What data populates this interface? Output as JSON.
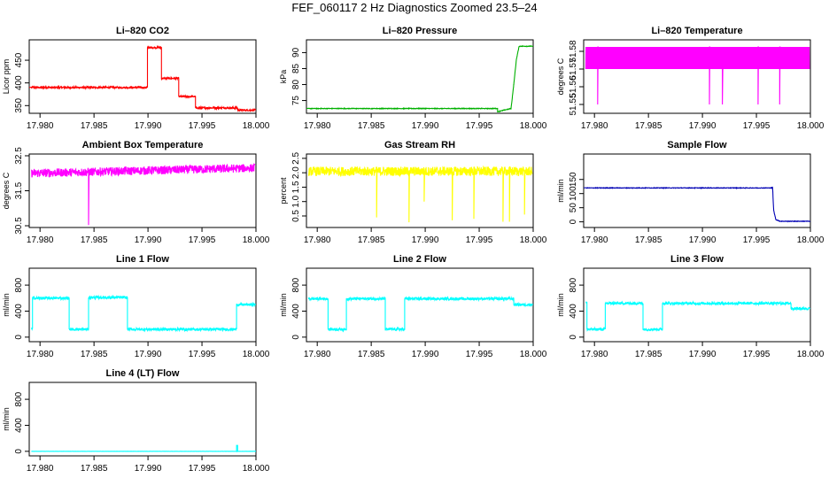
{
  "title": "FEF_060117  2 Hz Diagnostics Zoomed 23.5–24",
  "colors": {
    "red": "#ff0000",
    "green": "#00b000",
    "magenta": "#ff00ff",
    "yellow": "#ffff00",
    "blue": "#0000b4",
    "cyan": "#00ffff",
    "axis": "#000000"
  },
  "chart_data": [
    {
      "type": "line",
      "title": "Li–820 CO2",
      "xlabel": "",
      "ylabel": "Licor ppm",
      "color": "#ff0000",
      "xlim": [
        17.979,
        18.0
      ],
      "ylim": [
        333,
        495
      ],
      "xticks": [
        "17.980",
        "17.985",
        "17.990",
        "17.995",
        "18.000"
      ],
      "yticks": [
        "350",
        "400",
        "450"
      ],
      "series": [
        {
          "x": [
            17.979,
            17.98995,
            17.98995,
            17.99125,
            17.99125,
            17.99285,
            17.99285,
            17.9944,
            17.9944,
            17.9983,
            17.9983,
            18.0
          ],
          "values": [
            390,
            390,
            478,
            478,
            410,
            410,
            370,
            370,
            345,
            345,
            340,
            340
          ],
          "noise": 2
        }
      ]
    },
    {
      "type": "line",
      "title": "Li–820 Pressure",
      "xlabel": "",
      "ylabel": "kPa",
      "color": "#00b000",
      "xlim": [
        17.979,
        18.0
      ],
      "ylim": [
        71,
        94
      ],
      "xticks": [
        "17.980",
        "17.985",
        "17.990",
        "17.995",
        "18.000"
      ],
      "yticks": [
        "75",
        "80",
        "85",
        "90"
      ],
      "series": [
        {
          "x": [
            17.979,
            17.9967,
            17.9967,
            17.99795,
            17.9982,
            17.99845,
            17.9987,
            18.0
          ],
          "values": [
            72.5,
            72.5,
            71.5,
            72.5,
            80,
            88,
            92,
            92
          ],
          "noise": 0.1
        }
      ]
    },
    {
      "type": "line",
      "title": "Li–820 Temperature",
      "xlabel": "",
      "ylabel": "degrees C",
      "color": "#ff00ff",
      "xlim": [
        17.979,
        18.0
      ],
      "ylim": [
        51.545,
        51.5865
      ],
      "xticks": [
        "17.980",
        "17.985",
        "17.990",
        "17.995",
        "18.000"
      ],
      "yticks": [
        "51.55",
        "51.56",
        "51.57",
        "51.58"
      ],
      "series": [
        {
          "low": 51.57,
          "high": 51.5825,
          "spike_value": 51.55,
          "spikes_x": [
            17.9803,
            17.99065,
            17.99185,
            17.99515,
            17.99715
          ]
        }
      ]
    },
    {
      "type": "line",
      "title": "Ambient Box Temperature",
      "xlabel": "",
      "ylabel": "degrees C",
      "color": "#ff00ff",
      "xlim": [
        17.979,
        18.0
      ],
      "ylim": [
        30.45,
        32.55
      ],
      "xticks": [
        "17.980",
        "17.985",
        "17.990",
        "17.995",
        "18.000"
      ],
      "yticks": [
        "30.5",
        "31.5",
        "32.5"
      ],
      "series": [
        {
          "base": 32.0,
          "base_end": 32.15,
          "noise": 0.12,
          "spikes_x": [
            17.9845
          ],
          "spike_value": 30.52
        }
      ]
    },
    {
      "type": "line",
      "title": "Gas Stream RH",
      "xlabel": "",
      "ylabel": "percent",
      "color": "#ffff00",
      "xlim": [
        17.979,
        18.0
      ],
      "ylim": [
        0.1,
        2.65
      ],
      "xticks": [
        "17.980",
        "17.985",
        "17.990",
        "17.995",
        "18.000"
      ],
      "yticks": [
        "0.5",
        "1.0",
        "1.5",
        "2.0",
        "2.5"
      ],
      "series": [
        {
          "base": 2.05,
          "noise": 0.16,
          "spikes_x": [
            17.9855,
            17.9885,
            17.9899,
            17.9925,
            17.9945,
            17.9972,
            17.9978,
            17.9992
          ],
          "spike_values": [
            0.45,
            0.28,
            1.0,
            0.35,
            0.4,
            0.3,
            0.3,
            0.55
          ]
        }
      ]
    },
    {
      "type": "line",
      "title": "Sample Flow",
      "xlabel": "",
      "ylabel": "ml/min",
      "color": "#0000b4",
      "xlim": [
        17.979,
        18.0
      ],
      "ylim": [
        -20,
        240
      ],
      "xticks": [
        "17.980",
        "17.985",
        "17.990",
        "17.995",
        "18.000"
      ],
      "yticks": [
        "0",
        "50",
        "100",
        "150"
      ],
      "series": [
        {
          "x": [
            17.979,
            17.9965,
            17.9966,
            17.9968,
            17.9972,
            18.0
          ],
          "values": [
            120,
            120,
            40,
            8,
            2,
            2
          ],
          "noise": 1
        }
      ]
    },
    {
      "type": "line",
      "title": "Line 1 Flow",
      "xlabel": "",
      "ylabel": "ml/min",
      "color": "#00ffff",
      "xlim": [
        17.979,
        18.0
      ],
      "ylim": [
        -70,
        1060
      ],
      "xticks": [
        "17.980",
        "17.985",
        "17.990",
        "17.995",
        "18.000"
      ],
      "yticks": [
        "0",
        "400",
        "800"
      ],
      "series": [
        {
          "x": [
            17.9793,
            17.9793,
            17.9827,
            17.9827,
            17.9845,
            17.9845,
            17.9881,
            17.9881,
            17.9982,
            17.9982,
            18.0
          ],
          "values": [
            130,
            600,
            600,
            120,
            120,
            610,
            610,
            120,
            120,
            500,
            500
          ],
          "noise": 20
        }
      ]
    },
    {
      "type": "line",
      "title": "Line 2 Flow",
      "xlabel": "",
      "ylabel": "ml/min",
      "color": "#00ffff",
      "xlim": [
        17.979,
        18.0
      ],
      "ylim": [
        -70,
        1060
      ],
      "xticks": [
        "17.980",
        "17.985",
        "17.990",
        "17.995",
        "18.000"
      ],
      "yticks": [
        "0",
        "400",
        "800"
      ],
      "series": [
        {
          "x": [
            17.9793,
            17.981,
            17.981,
            17.9827,
            17.9827,
            17.9863,
            17.9863,
            17.9881,
            17.9881,
            17.9982,
            17.9982,
            18.0
          ],
          "values": [
            590,
            590,
            120,
            120,
            590,
            590,
            120,
            120,
            590,
            590,
            500,
            500
          ],
          "noise": 20
        }
      ]
    },
    {
      "type": "line",
      "title": "Line 3 Flow",
      "xlabel": "",
      "ylabel": "ml/min",
      "color": "#00ffff",
      "xlim": [
        17.979,
        18.0
      ],
      "ylim": [
        -70,
        1060
      ],
      "xticks": [
        "17.980",
        "17.985",
        "17.990",
        "17.995",
        "18.000"
      ],
      "yticks": [
        "0",
        "400",
        "800"
      ],
      "series": [
        {
          "x": [
            17.9793,
            17.9793,
            17.981,
            17.981,
            17.9845,
            17.9845,
            17.9863,
            17.9863,
            17.9982,
            17.9982,
            18.0
          ],
          "values": [
            530,
            120,
            120,
            520,
            520,
            120,
            120,
            520,
            520,
            440,
            440
          ],
          "noise": 20
        }
      ]
    },
    {
      "type": "line",
      "title": "Line 4 (LT) Flow",
      "xlabel": "",
      "ylabel": "ml/min",
      "color": "#00ffff",
      "xlim": [
        17.979,
        18.0
      ],
      "ylim": [
        -70,
        1060
      ],
      "xticks": [
        "17.980",
        "17.985",
        "17.990",
        "17.995",
        "18.000"
      ],
      "yticks": [
        "0",
        "400",
        "800"
      ],
      "series": [
        {
          "x": [
            17.9793,
            17.9982,
            17.9982,
            17.9983,
            17.9983,
            18.0
          ],
          "values": [
            0,
            0,
            90,
            90,
            0,
            0
          ],
          "noise": 1
        }
      ]
    }
  ]
}
